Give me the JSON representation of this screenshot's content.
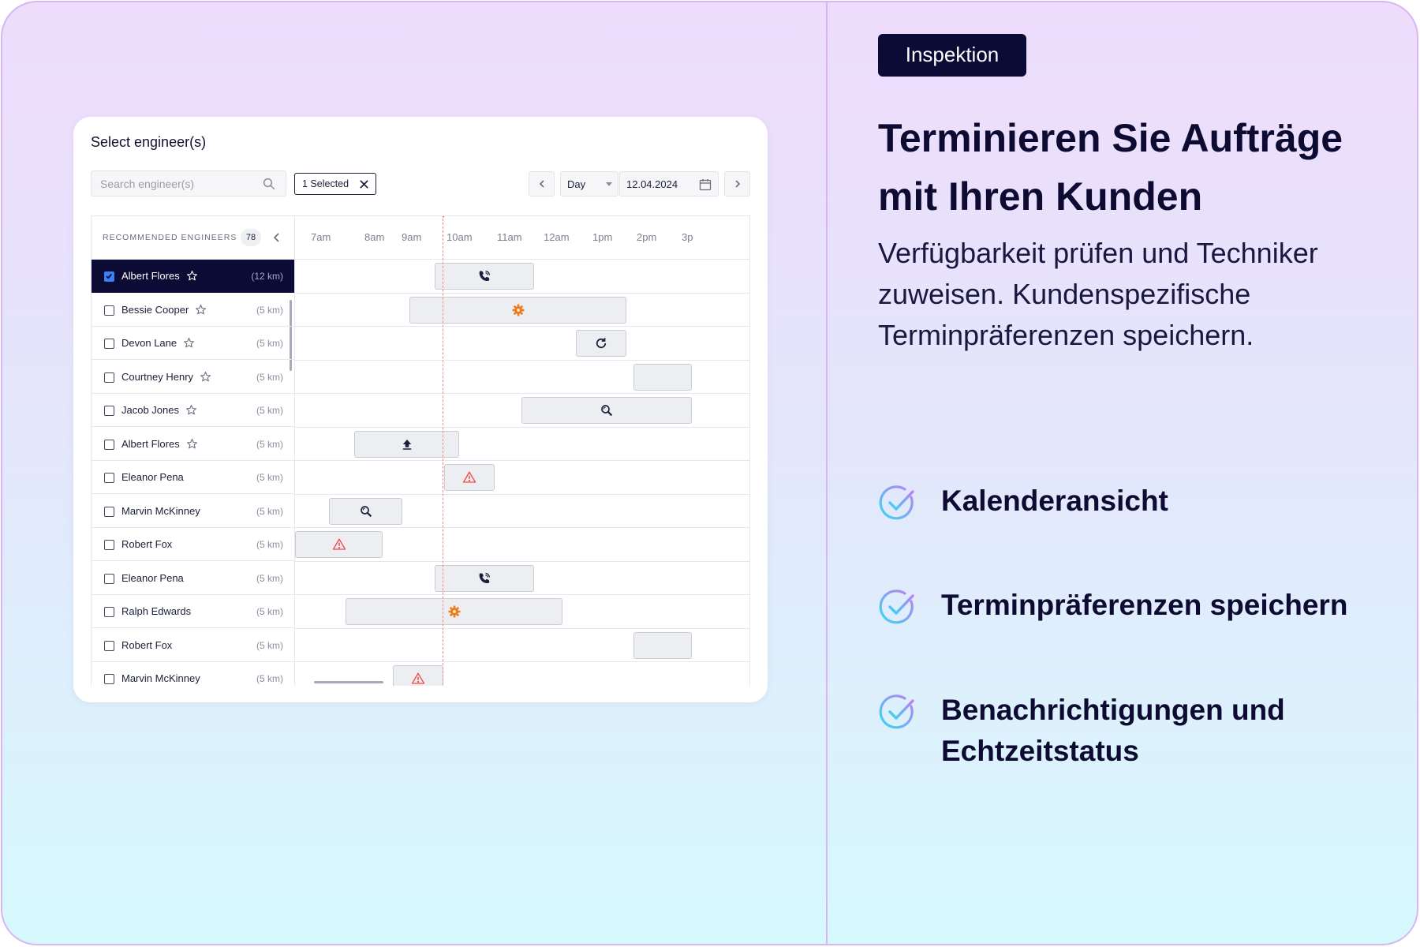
{
  "panel": {
    "title": "Select engineer(s)",
    "search_placeholder": "Search engineer(s)",
    "selected_chip": "1 Selected",
    "view_mode": "Day",
    "date": "12.04.2024",
    "list_header": "RECOMMENDED ENGINEERS",
    "count": "78",
    "time_labels": [
      "7am",
      "8am",
      "9am",
      "10am",
      "11am",
      "12am",
      "1pm",
      "2pm",
      "3p"
    ],
    "engineers": [
      {
        "name": "Albert Flores",
        "distance": "(12 km)",
        "selected": true,
        "starred": true
      },
      {
        "name": "Bessie Cooper",
        "distance": "(5 km)",
        "selected": false,
        "starred": true
      },
      {
        "name": "Devon Lane",
        "distance": "(5 km)",
        "selected": false,
        "starred": true
      },
      {
        "name": "Courtney Henry",
        "distance": "(5 km)",
        "selected": false,
        "starred": true
      },
      {
        "name": "Jacob Jones",
        "distance": "(5 km)",
        "selected": false,
        "starred": true
      },
      {
        "name": "Albert Flores",
        "distance": "(5 km)",
        "selected": false,
        "starred": true
      },
      {
        "name": "Eleanor Pena",
        "distance": "(5 km)",
        "selected": false,
        "starred": false
      },
      {
        "name": "Marvin McKinney",
        "distance": "(5 km)",
        "selected": false,
        "starred": false
      },
      {
        "name": "Robert Fox",
        "distance": "(5 km)",
        "selected": false,
        "starred": false
      },
      {
        "name": "Eleanor Pena",
        "distance": "(5 km)",
        "selected": false,
        "starred": false
      },
      {
        "name": "Ralph Edwards",
        "distance": "(5 km)",
        "selected": false,
        "starred": false
      },
      {
        "name": "Robert Fox",
        "distance": "(5 km)",
        "selected": false,
        "starred": false
      },
      {
        "name": "Marvin McKinney",
        "distance": "(5 km)",
        "selected": false,
        "starred": false
      }
    ],
    "jobs": [
      {
        "row": 0,
        "icon": "phone-icon"
      },
      {
        "row": 1,
        "icon": "gear-icon",
        "color": "#f07b16"
      },
      {
        "row": 2,
        "icon": "refresh-icon"
      },
      {
        "row": 3,
        "icon": ""
      },
      {
        "row": 4,
        "icon": "search-zoom-icon"
      },
      {
        "row": 5,
        "icon": "upload-icon"
      },
      {
        "row": 6,
        "icon": "warning-icon",
        "color": "#ef4b4b"
      },
      {
        "row": 7,
        "icon": "search-zoom-icon"
      },
      {
        "row": 8,
        "icon": "warning-icon",
        "color": "#ef4b4b"
      },
      {
        "row": 9,
        "icon": "phone-icon"
      },
      {
        "row": 10,
        "icon": "gear-icon",
        "color": "#f07b16"
      },
      {
        "row": 11,
        "icon": ""
      },
      {
        "row": 12,
        "icon": "warning-icon",
        "color": "#ef4b4b"
      }
    ]
  },
  "right": {
    "tag": "Inspektion",
    "headline": "Terminieren Sie Aufträge mit Ihren Kunden",
    "subtext": "Verfügbarkeit prüfen und Techniker zuweisen. Kundenspezifische Terminpräferenzen speichern.",
    "features": [
      {
        "label": "Kalenderansicht"
      },
      {
        "label": "Terminpräferenzen speichern"
      },
      {
        "label": "Benachrichtigungen und Echtzeitstatus"
      }
    ]
  },
  "colors": {
    "dark_navy": "#0c0b36",
    "accent_blue": "#3c7ff7",
    "now_line": "#ef5b5b",
    "gear": "#f07b16",
    "warning": "#ef4b4b"
  }
}
